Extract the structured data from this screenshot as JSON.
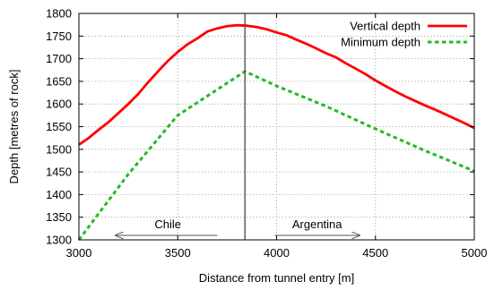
{
  "chart_data": {
    "type": "line",
    "xlabel": "Distance from tunnel entry [m]",
    "ylabel": "Depth [metres of rock]",
    "xlim": [
      3000,
      5000
    ],
    "ylim": [
      1300,
      1800
    ],
    "xticks": [
      3000,
      3500,
      4000,
      4500,
      5000
    ],
    "yticks": [
      1300,
      1350,
      1400,
      1450,
      1500,
      1550,
      1600,
      1650,
      1700,
      1750,
      1800
    ],
    "grid": true,
    "legend_position": "top-right",
    "series": [
      {
        "name": "Vertical depth",
        "color": "#ff0000",
        "style": "solid",
        "x": [
          3000,
          3050,
          3100,
          3150,
          3200,
          3250,
          3300,
          3350,
          3400,
          3450,
          3500,
          3550,
          3600,
          3650,
          3700,
          3750,
          3800,
          3850,
          3900,
          3950,
          4000,
          4050,
          4100,
          4150,
          4200,
          4250,
          4300,
          4350,
          4400,
          4450,
          4500,
          4550,
          4600,
          4650,
          4700,
          4750,
          4800,
          4850,
          4900,
          4950,
          5000
        ],
        "y": [
          1510,
          1525,
          1543,
          1560,
          1580,
          1600,
          1622,
          1648,
          1672,
          1695,
          1715,
          1732,
          1745,
          1760,
          1767,
          1772,
          1774,
          1773,
          1770,
          1765,
          1758,
          1752,
          1742,
          1733,
          1723,
          1712,
          1703,
          1690,
          1678,
          1666,
          1652,
          1640,
          1628,
          1617,
          1607,
          1597,
          1588,
          1578,
          1568,
          1558,
          1547
        ]
      },
      {
        "name": "Minimum depth",
        "color": "#22bb22",
        "style": "dashed",
        "x": [
          3000,
          3250,
          3500,
          3840,
          4000,
          4250,
          4500,
          4750,
          5000
        ],
        "y": [
          1300,
          1445,
          1575,
          1672,
          1640,
          1595,
          1545,
          1497,
          1452
        ]
      }
    ],
    "vertical_marker": {
      "x": 3840
    },
    "annotations": [
      {
        "text": "Chile",
        "arrow_from": 3700,
        "arrow_to": 3185,
        "text_x": 3450,
        "y": 1310
      },
      {
        "text": "Argentina",
        "arrow_from": 3990,
        "arrow_to": 4420,
        "text_x": 4205,
        "y": 1310
      }
    ]
  }
}
